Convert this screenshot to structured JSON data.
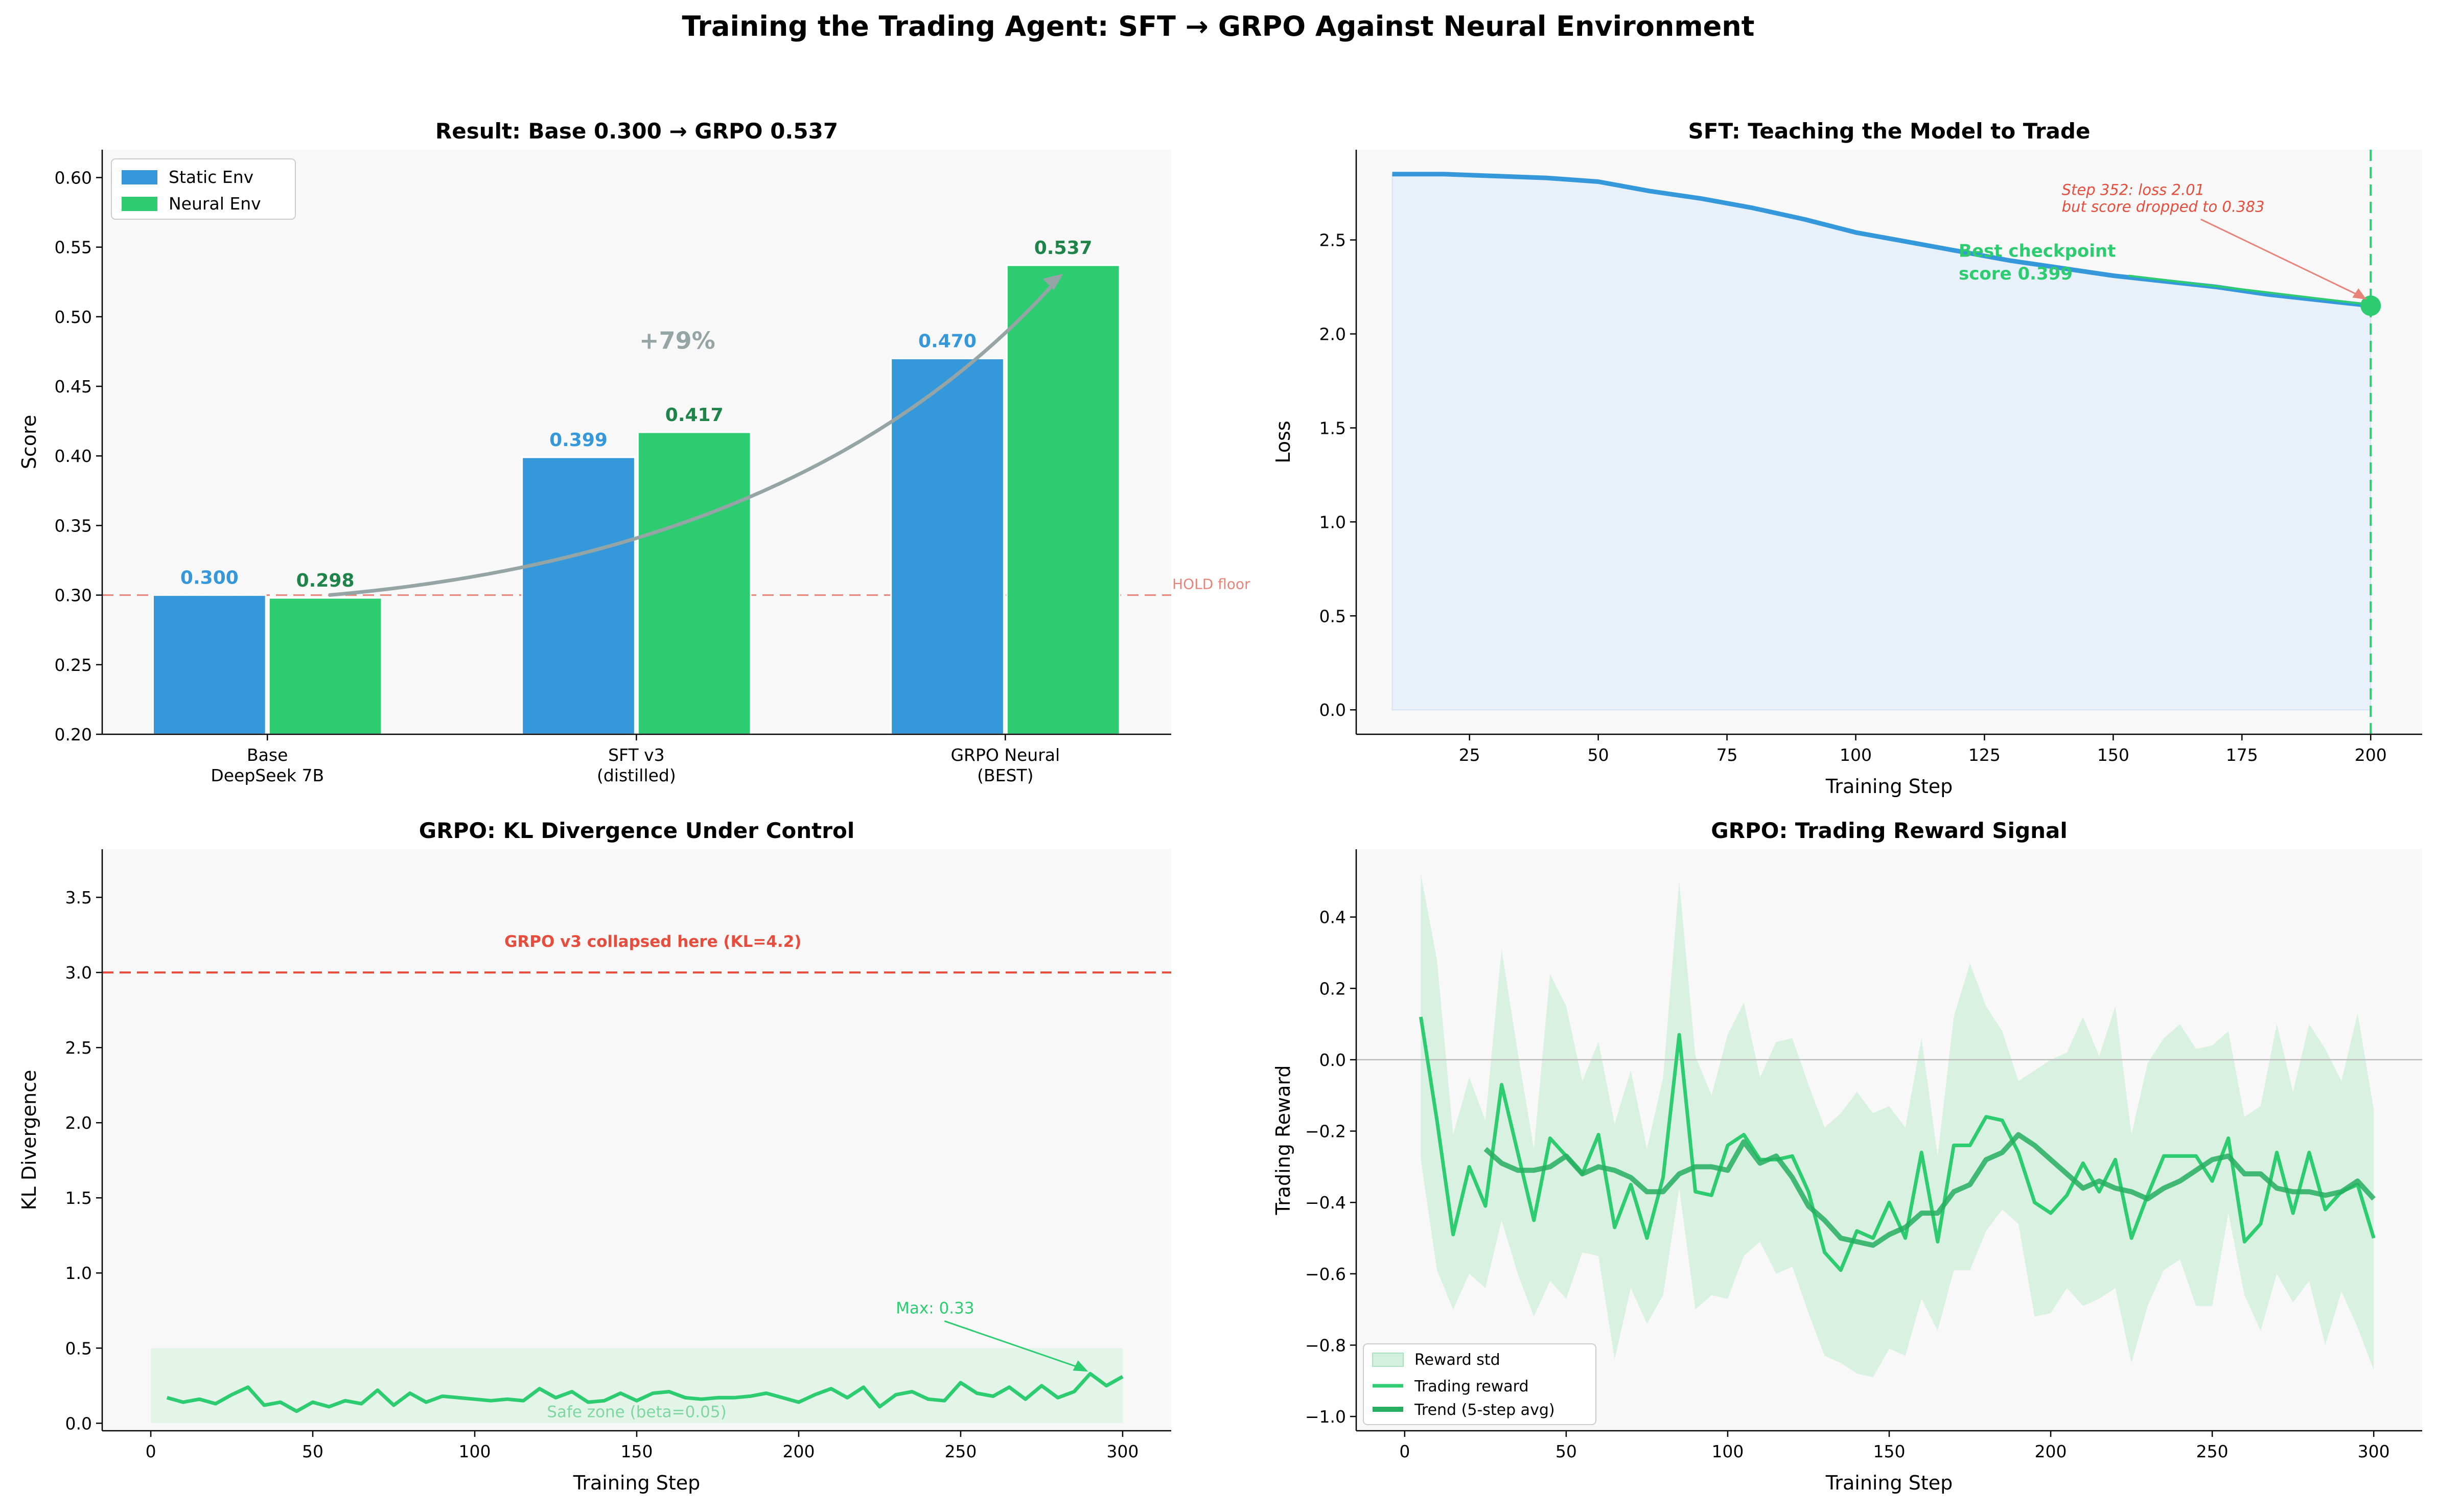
{
  "figure": {
    "suptitle": "Training the Trading Agent: SFT → GRPO Against Neural Environment"
  },
  "colors": {
    "blue": "#3498db",
    "green": "#2ecc71",
    "dark_green": "#1e8449",
    "red": "#e74c3c",
    "gray": "#95a5a6",
    "panel_bg": "#f8f8f8"
  },
  "chart_data": [
    {
      "id": "result",
      "type": "bar",
      "title": "Result: Base 0.300 → GRPO 0.537",
      "xlabel": "",
      "ylabel": "Score",
      "ylim": [
        0.2,
        0.62
      ],
      "yticks": [
        "0.20",
        "0.25",
        "0.30",
        "0.35",
        "0.40",
        "0.45",
        "0.50",
        "0.55",
        "0.60"
      ],
      "categories": [
        [
          "Base",
          "DeepSeek 7B"
        ],
        [
          "SFT v3",
          "(distilled)"
        ],
        [
          "GRPO Neural",
          "(BEST)"
        ]
      ],
      "series": [
        {
          "name": "Static Env",
          "values": [
            0.3,
            0.399,
            0.47
          ],
          "labels": [
            "0.300",
            "0.399",
            "0.470"
          ]
        },
        {
          "name": "Neural Env",
          "values": [
            0.298,
            0.417,
            0.537
          ],
          "labels": [
            "0.298",
            "0.417",
            "0.537"
          ]
        }
      ],
      "hline": {
        "y": 0.3,
        "label": "HOLD floor"
      },
      "annotation": {
        "text": "+79%"
      },
      "legend_position": "upper-left",
      "grid": false
    },
    {
      "id": "sft",
      "type": "area",
      "title": "SFT: Teaching the Model to Trade",
      "xlabel": "Training Step",
      "ylabel": "Loss",
      "xlim": [
        3,
        210
      ],
      "ylim": [
        -0.13,
        2.98
      ],
      "xticks": [
        "25",
        "50",
        "75",
        "100",
        "125",
        "150",
        "175",
        "200"
      ],
      "yticks": [
        "0.0",
        "0.5",
        "1.0",
        "1.5",
        "2.0",
        "2.5"
      ],
      "x": [
        10,
        20,
        30,
        40,
        50,
        60,
        70,
        80,
        90,
        100,
        110,
        120,
        130,
        140,
        150,
        160,
        170,
        180,
        190,
        200
      ],
      "y": [
        2.85,
        2.85,
        2.84,
        2.83,
        2.81,
        2.76,
        2.72,
        2.67,
        2.61,
        2.54,
        2.49,
        2.44,
        2.39,
        2.35,
        2.31,
        2.28,
        2.25,
        2.21,
        2.18,
        2.15
      ],
      "vline": {
        "x": 200
      },
      "marker": {
        "x": 200,
        "y": 2.15
      },
      "best_checkpoint": {
        "line1": "Best checkpoint",
        "line2": "score 0.399"
      },
      "note": {
        "line1": "Step 352: loss 2.01",
        "line2": "but score dropped to 0.383"
      },
      "grid": false
    },
    {
      "id": "kl",
      "type": "line",
      "title": "GRPO: KL Divergence Under Control",
      "xlabel": "Training Step",
      "ylabel": "KL Divergence",
      "xlim": [
        -15,
        315
      ],
      "ylim": [
        -0.05,
        3.82
      ],
      "xticks": [
        "0",
        "50",
        "100",
        "150",
        "200",
        "250",
        "300"
      ],
      "yticks": [
        "0.0",
        "0.5",
        "1.0",
        "1.5",
        "2.0",
        "2.5",
        "3.0",
        "3.5"
      ],
      "x": [
        5,
        10,
        15,
        20,
        25,
        30,
        35,
        40,
        45,
        50,
        55,
        60,
        65,
        70,
        75,
        80,
        85,
        90,
        95,
        100,
        105,
        110,
        115,
        120,
        125,
        130,
        135,
        140,
        145,
        150,
        155,
        160,
        165,
        170,
        175,
        180,
        185,
        190,
        195,
        200,
        205,
        210,
        215,
        220,
        225,
        230,
        235,
        240,
        245,
        250,
        255,
        260,
        265,
        270,
        275,
        280,
        285,
        290,
        295,
        300
      ],
      "y": [
        0.17,
        0.14,
        0.16,
        0.13,
        0.19,
        0.24,
        0.12,
        0.14,
        0.08,
        0.14,
        0.11,
        0.15,
        0.13,
        0.22,
        0.12,
        0.2,
        0.14,
        0.18,
        0.17,
        0.16,
        0.15,
        0.16,
        0.15,
        0.23,
        0.17,
        0.21,
        0.14,
        0.15,
        0.2,
        0.15,
        0.2,
        0.21,
        0.17,
        0.16,
        0.17,
        0.17,
        0.18,
        0.2,
        0.17,
        0.14,
        0.19,
        0.23,
        0.17,
        0.24,
        0.11,
        0.19,
        0.21,
        0.16,
        0.15,
        0.27,
        0.2,
        0.18,
        0.24,
        0.16,
        0.25,
        0.17,
        0.21,
        0.33,
        0.25,
        0.31
      ],
      "collapse_line": {
        "y": 3.0,
        "label": "GRPO v3 collapsed here (KL=4.2)"
      },
      "safe_zone": {
        "y0": 0.0,
        "y1": 0.5,
        "x0": 0,
        "x1": 300,
        "label": "Safe zone (beta=0.05)"
      },
      "max_note": {
        "text": "Max: 0.33",
        "x": 290,
        "y": 0.33
      },
      "grid": false
    },
    {
      "id": "reward",
      "type": "line",
      "title": "GRPO: Trading Reward Signal",
      "xlabel": "Training Step",
      "ylabel": "Trading Reward",
      "xlim": [
        -15,
        315
      ],
      "ylim": [
        -1.04,
        0.59
      ],
      "xticks": [
        "0",
        "50",
        "100",
        "150",
        "200",
        "250",
        "300"
      ],
      "yticks": [
        "−1.0",
        "−0.8",
        "−0.6",
        "−0.4",
        "−0.2",
        "0.0",
        "0.2",
        "0.4"
      ],
      "x": [
        5,
        10,
        15,
        20,
        25,
        30,
        35,
        40,
        45,
        50,
        55,
        60,
        65,
        70,
        75,
        80,
        85,
        90,
        95,
        100,
        105,
        110,
        115,
        120,
        125,
        130,
        135,
        140,
        145,
        150,
        155,
        160,
        165,
        170,
        175,
        180,
        185,
        190,
        195,
        200,
        205,
        210,
        215,
        220,
        225,
        230,
        235,
        240,
        245,
        250,
        255,
        260,
        265,
        270,
        275,
        280,
        285,
        290,
        295,
        300
      ],
      "y": [
        0.12,
        -0.17,
        -0.49,
        -0.3,
        -0.41,
        -0.07,
        -0.26,
        -0.45,
        -0.22,
        -0.27,
        -0.32,
        -0.21,
        -0.47,
        -0.35,
        -0.5,
        -0.33,
        0.07,
        -0.37,
        -0.38,
        -0.24,
        -0.21,
        -0.28,
        -0.28,
        -0.27,
        -0.37,
        -0.54,
        -0.59,
        -0.48,
        -0.5,
        -0.4,
        -0.5,
        -0.26,
        -0.51,
        -0.24,
        -0.24,
        -0.16,
        -0.17,
        -0.26,
        -0.4,
        -0.43,
        -0.38,
        -0.29,
        -0.37,
        -0.28,
        -0.5,
        -0.38,
        -0.27,
        -0.27,
        -0.27,
        -0.34,
        -0.22,
        -0.51,
        -0.46,
        -0.26,
        -0.43,
        -0.26,
        -0.42,
        -0.37,
        -0.35,
        -0.5
      ],
      "std_upper": [
        0.52,
        0.28,
        -0.21,
        -0.05,
        -0.17,
        0.31,
        0.02,
        -0.25,
        0.24,
        0.15,
        -0.06,
        0.05,
        -0.18,
        -0.03,
        -0.25,
        -0.05,
        0.5,
        0.01,
        -0.1,
        0.07,
        0.16,
        -0.05,
        0.05,
        0.06,
        -0.07,
        -0.19,
        -0.15,
        -0.09,
        -0.15,
        -0.13,
        -0.19,
        0.06,
        -0.27,
        0.12,
        0.27,
        0.15,
        0.08,
        -0.06,
        -0.03,
        0.0,
        0.02,
        0.12,
        0.01,
        0.15,
        -0.21,
        -0.01,
        0.06,
        0.1,
        0.03,
        0.04,
        0.08,
        -0.16,
        -0.13,
        0.1,
        -0.09,
        0.1,
        0.03,
        -0.06,
        0.13,
        -0.14
      ],
      "std_lower": [
        -0.28,
        -0.59,
        -0.7,
        -0.6,
        -0.64,
        -0.45,
        -0.6,
        -0.72,
        -0.62,
        -0.67,
        -0.54,
        -0.55,
        -0.84,
        -0.64,
        -0.74,
        -0.66,
        -0.36,
        -0.7,
        -0.66,
        -0.67,
        -0.55,
        -0.51,
        -0.6,
        -0.58,
        -0.71,
        -0.83,
        -0.85,
        -0.88,
        -0.89,
        -0.81,
        -0.83,
        -0.67,
        -0.76,
        -0.59,
        -0.59,
        -0.48,
        -0.42,
        -0.46,
        -0.72,
        -0.71,
        -0.64,
        -0.69,
        -0.67,
        -0.64,
        -0.85,
        -0.69,
        -0.59,
        -0.56,
        -0.69,
        -0.69,
        -0.43,
        -0.66,
        -0.76,
        -0.6,
        -0.68,
        -0.62,
        -0.8,
        -0.65,
        -0.75,
        -0.87
      ],
      "trend_x": [
        25,
        30,
        35,
        40,
        45,
        50,
        55,
        60,
        65,
        70,
        75,
        80,
        85,
        90,
        95,
        100,
        105,
        110,
        115,
        120,
        125,
        130,
        135,
        140,
        145,
        150,
        155,
        160,
        165,
        170,
        175,
        180,
        185,
        190,
        195,
        200,
        205,
        210,
        215,
        220,
        225,
        230,
        235,
        240,
        245,
        250,
        255,
        260,
        265,
        270,
        275,
        280,
        285,
        290,
        295,
        300
      ],
      "trend_y": [
        -0.25,
        -0.29,
        -0.31,
        -0.31,
        -0.3,
        -0.27,
        -0.32,
        -0.3,
        -0.31,
        -0.33,
        -0.37,
        -0.37,
        -0.32,
        -0.3,
        -0.3,
        -0.31,
        -0.23,
        -0.29,
        -0.27,
        -0.33,
        -0.41,
        -0.45,
        -0.5,
        -0.51,
        -0.52,
        -0.49,
        -0.47,
        -0.43,
        -0.43,
        -0.37,
        -0.35,
        -0.28,
        -0.26,
        -0.21,
        -0.24,
        -0.28,
        -0.32,
        -0.36,
        -0.34,
        -0.36,
        -0.37,
        -0.39,
        -0.36,
        -0.34,
        -0.31,
        -0.28,
        -0.27,
        -0.32,
        -0.32,
        -0.36,
        -0.37,
        -0.37,
        -0.38,
        -0.37,
        -0.34,
        -0.39
      ],
      "legend": [
        "Reward std",
        "Trading reward",
        "Trend (5-step avg)"
      ],
      "legend_position": "lower-left",
      "zero_line": true,
      "grid": false
    }
  ]
}
